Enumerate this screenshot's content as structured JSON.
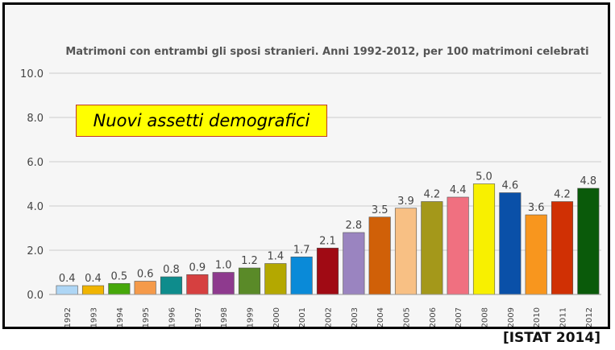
{
  "chart_data": {
    "type": "bar",
    "title": "Matrimoni con entrambi gli sposi stranieri. Anni 1992-2012, per 100 matrimoni celebrati",
    "annotation": "Nuovi assetti demografici",
    "xlabel": "",
    "ylabel": "",
    "ylim": [
      0,
      10
    ],
    "yticks": [
      "0.0",
      "2.0",
      "4.0",
      "6.0",
      "8.0",
      "10.0"
    ],
    "grid": true,
    "categories": [
      "1992",
      "1993",
      "1994",
      "1995",
      "1996",
      "1997",
      "1998",
      "1999",
      "2000",
      "2001",
      "2002",
      "2003",
      "2004",
      "2005",
      "2006",
      "2007",
      "2008",
      "2009",
      "2010",
      "2011",
      "2012"
    ],
    "values": [
      0.4,
      0.4,
      0.5,
      0.6,
      0.8,
      0.9,
      1.0,
      1.2,
      1.4,
      1.7,
      2.1,
      2.8,
      3.5,
      3.9,
      4.2,
      4.4,
      5.0,
      4.6,
      3.6,
      4.2,
      4.8
    ],
    "colors": [
      "#aed6f5",
      "#f0b400",
      "#46a80a",
      "#f59a4a",
      "#0e8c8c",
      "#d64040",
      "#8e3a8e",
      "#5a8a28",
      "#b4a800",
      "#0a8ad8",
      "#a00a14",
      "#9a84c0",
      "#d06008",
      "#f8c084",
      "#a4981a",
      "#f07080",
      "#f8f000",
      "#0a50a8",
      "#f8961e",
      "#d03004",
      "#0a5a0a"
    ]
  },
  "source_note": "[ISTAT 2014]"
}
